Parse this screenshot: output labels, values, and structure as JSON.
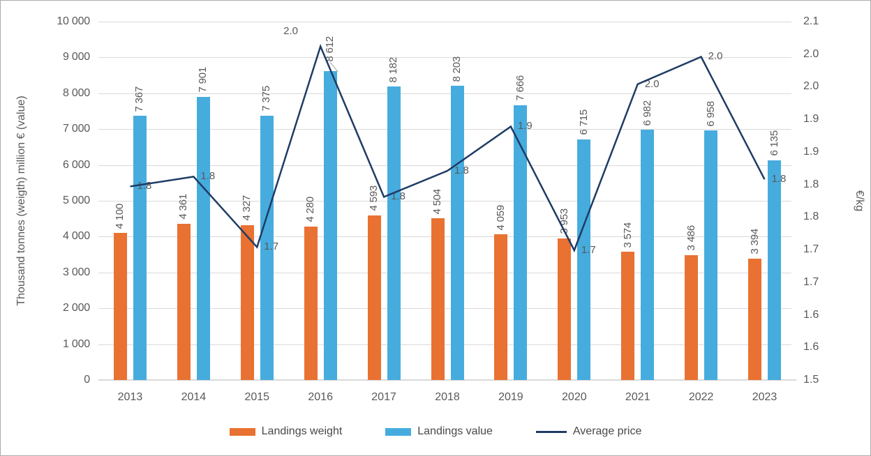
{
  "chart_data": {
    "type": "combo-bar-line",
    "categories": [
      "2013",
      "2014",
      "2015",
      "2016",
      "2017",
      "2018",
      "2019",
      "2020",
      "2021",
      "2022",
      "2023"
    ],
    "series": [
      {
        "name": "Landings weight",
        "type": "bar",
        "color": "#E97132",
        "values": [
          4100,
          4361,
          4327,
          4280,
          4593,
          4504,
          4059,
          3953,
          3574,
          3486,
          3394
        ],
        "labels": [
          "4 100",
          "4 361",
          "4 327",
          "4 280",
          "4 593",
          "4 504",
          "4 059",
          "3 953",
          "3 574",
          "3 486",
          "3 394"
        ]
      },
      {
        "name": "Landings value",
        "type": "bar",
        "color": "#46ACDE",
        "values": [
          7367,
          7901,
          7375,
          8612,
          8182,
          8203,
          7666,
          6715,
          6982,
          6958,
          6135
        ],
        "labels": [
          "7 367",
          "7 901",
          "7 375",
          "8 612",
          "8 182",
          "8 203",
          "7 666",
          "6 715",
          "6 982",
          "6 958",
          "6 135"
        ]
      },
      {
        "name": "Average price",
        "type": "line",
        "axis": "right",
        "color": "#1F3C64",
        "values": [
          1.797,
          1.812,
          1.704,
          2.012,
          1.781,
          1.821,
          1.889,
          1.699,
          1.954,
          1.996,
          1.808
        ],
        "labels": [
          "1.8",
          "1.8",
          "1.7",
          "2.0",
          "1.8",
          "1.8",
          "1.9",
          "1.7",
          "2.0",
          "2.0",
          "1.8"
        ]
      }
    ],
    "left_axis": {
      "title": "Thousand tonnes (weigth) million € (value)",
      "min": 0,
      "max": 10000,
      "tick_labels": [
        "10 000",
        "9 000",
        "8 000",
        "7 000",
        "6 000",
        "5 000",
        "4 000",
        "3 000",
        "2 000",
        "1 000",
        "0"
      ]
    },
    "right_axis": {
      "title": "€/kg",
      "min": 1.5,
      "max": 2.05,
      "tick_labels": [
        "2.1",
        "2.0",
        "2.0",
        "1.9",
        "1.9",
        "1.8",
        "1.8",
        "1.7",
        "1.7",
        "1.6",
        "1.6",
        "1.5"
      ]
    },
    "legend": {
      "position": "bottom",
      "items": [
        {
          "label": "Landings weight",
          "color": "#E97132",
          "shape": "rect"
        },
        {
          "label": "Landings value",
          "color": "#46ACDE",
          "shape": "rect"
        },
        {
          "label": "Average price",
          "color": "#1F3C64",
          "shape": "line"
        }
      ]
    },
    "grid": true,
    "colors": {
      "gridline": "#D9D9D9",
      "axis_text": "#595959",
      "leader_line": "#A6A6A6"
    }
  }
}
